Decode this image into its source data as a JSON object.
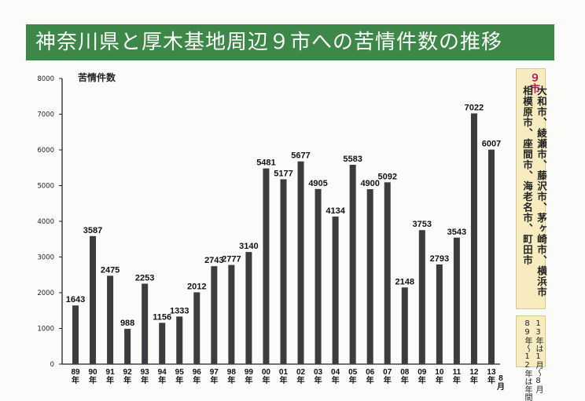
{
  "header": {
    "title": "神奈川県と厚木基地周辺９市への苦情件数の推移"
  },
  "sidebar": {
    "cities_heading": "９市",
    "cities_line1": "大和市、綾瀬市、藤沢市、茅ヶ崎市、横浜市",
    "cities_line2": "相模原市、座間市、海老名市、町田市",
    "note_line1": "13年は1月～8月",
    "note_line2": "89年～12年は年間"
  },
  "colors": {
    "bar": "#3c3c3c",
    "title_bg": "#3d8748",
    "title_text": "#ffffff",
    "sidebar_bg": "#f6ecc0",
    "heading_text": "#b0175a"
  },
  "chart_data": {
    "type": "bar",
    "title": "神奈川県と厚木基地周辺９市への苦情件数の推移",
    "ylabel": "苦情件数",
    "xlabel": "",
    "ylim": [
      0,
      8000
    ],
    "yticks": [
      0,
      1000,
      2000,
      3000,
      4000,
      5000,
      6000,
      7000,
      8000
    ],
    "grid": false,
    "categories": [
      "89\n年",
      "90\n年",
      "91\n年",
      "92\n年",
      "93\n年",
      "94\n年",
      "95\n年",
      "96\n年",
      "97\n年",
      "98\n年",
      "99\n年",
      "00\n年",
      "01\n年",
      "02\n年",
      "03\n年",
      "04\n年",
      "05\n年",
      "06\n年",
      "07\n年",
      "08\n年",
      "09\n年",
      "10\n年",
      "11\n年",
      "12\n年",
      "13\n年"
    ],
    "values": [
      1643,
      3587,
      2475,
      988,
      2253,
      1156,
      1333,
      2012,
      2743,
      2777,
      3140,
      5481,
      5177,
      5677,
      4905,
      4134,
      5583,
      4900,
      5092,
      2148,
      3753,
      2793,
      3543,
      7022,
      6007
    ],
    "extra_labels": [
      {
        "category_index": 24,
        "text": "8\n月"
      }
    ]
  }
}
